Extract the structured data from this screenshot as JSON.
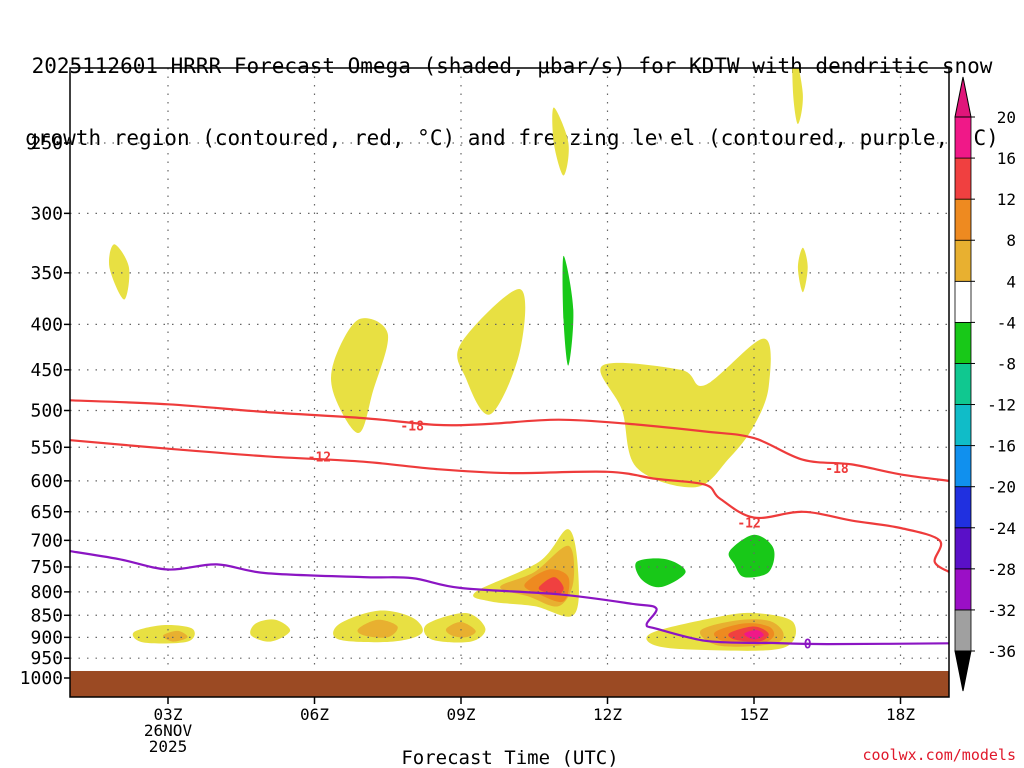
{
  "title_lines": [
    "2025112601 HRRR Forecast Omega (shaded, μbar/s) for KDTW with dendritic snow",
    "growth region (contoured, red, °C) and freezing level (contoured, purple, °C)"
  ],
  "brand": "coolwx.com/models",
  "chart_data": {
    "type": "contour-cross-section",
    "title": "2025112601 HRRR Forecast Omega (shaded, μbar/s) for KDTW with dendritic snow growth region (contoured, red, °C) and freezing level (contoured, purple, °C)",
    "xlabel": "Forecast Time (UTC)",
    "ylabel": "",
    "xlim": [
      1,
      19
    ],
    "ylim": [
      1000,
      200
    ],
    "x_ticks": [
      {
        "h": 3,
        "label": "03Z"
      },
      {
        "h": 6,
        "label": "06Z"
      },
      {
        "h": 9,
        "label": "09Z"
      },
      {
        "h": 12,
        "label": "12Z"
      },
      {
        "h": 15,
        "label": "15Z"
      },
      {
        "h": 18,
        "label": "18Z"
      }
    ],
    "x_date_lines": [
      "26NOV",
      "2025"
    ],
    "y_ticks": [
      250,
      300,
      350,
      400,
      450,
      500,
      550,
      600,
      650,
      700,
      750,
      800,
      850,
      900,
      950,
      1000
    ],
    "colorbar": {
      "levels": [
        -36,
        -32,
        -28,
        -24,
        -20,
        -16,
        -12,
        -8,
        -4,
        4,
        8,
        12,
        16,
        20
      ],
      "level_labels": [
        "-36",
        "-32",
        "-28",
        "-24",
        "-20",
        "-16",
        "-12",
        "-8",
        "-4",
        "4",
        "8",
        "12",
        "16",
        "20"
      ],
      "colors": [
        "#a0a0a0",
        "#9b0fc6",
        "#5a10c8",
        "#2030e0",
        "#1090ee",
        "#10bcc8",
        "#10c890",
        "#18c818",
        "#ffffff",
        "#e8e042",
        "#e8b030",
        "#ee8a20",
        "#f04040",
        "#f01888"
      ],
      "under_color": "#000000",
      "over_color": "#e0157a"
    },
    "terrain": {
      "top_hpa": 982,
      "color": "#9b4a23"
    },
    "isotherms": [
      {
        "label": "-18",
        "color": "#ee3b3b",
        "points": [
          [
            1,
            487
          ],
          [
            3,
            492
          ],
          [
            5,
            502
          ],
          [
            7,
            510
          ],
          [
            8.5,
            519
          ],
          [
            9.5,
            518
          ],
          [
            11,
            512
          ],
          [
            12.5,
            518
          ],
          [
            14,
            528
          ],
          [
            15,
            537
          ],
          [
            16,
            568
          ],
          [
            17,
            575
          ],
          [
            18,
            590
          ],
          [
            19,
            600
          ]
        ],
        "label_at": [
          8,
          520
        ]
      },
      {
        "label": "-18",
        "color": "#ee3b3b",
        "points": [],
        "label_at": [
          16.7,
          580
        ]
      },
      {
        "label": "-12",
        "color": "#ee3b3b",
        "points": [
          [
            1,
            540
          ],
          [
            3,
            552
          ],
          [
            5,
            563
          ],
          [
            7,
            571
          ],
          [
            8.5,
            582
          ],
          [
            10,
            588
          ],
          [
            12,
            586
          ],
          [
            13,
            597
          ],
          [
            14,
            606
          ],
          [
            14.3,
            628
          ],
          [
            15,
            660
          ],
          [
            16,
            650
          ],
          [
            17,
            665
          ],
          [
            18,
            678
          ],
          [
            18.8,
            700
          ],
          [
            18.7,
            740
          ],
          [
            19,
            760
          ]
        ],
        "label_at": [
          6.1,
          563
        ]
      },
      {
        "label": "-12",
        "color": "#ee3b3b",
        "points": [],
        "label_at": [
          14.9,
          668
        ]
      },
      {
        "label": "0",
        "color": "#8b15c3",
        "points": [
          [
            1,
            720
          ],
          [
            2,
            735
          ],
          [
            3,
            755
          ],
          [
            4,
            745
          ],
          [
            5,
            762
          ],
          [
            7,
            770
          ],
          [
            8,
            772
          ],
          [
            9,
            792
          ],
          [
            11,
            805
          ],
          [
            12.5,
            825
          ],
          [
            13,
            835
          ],
          [
            12.8,
            870
          ],
          [
            13,
            880
          ],
          [
            14,
            908
          ],
          [
            15,
            913
          ],
          [
            15.3,
            913
          ],
          [
            16.5,
            916
          ],
          [
            19,
            914
          ]
        ],
        "label_at": [
          16.1,
          914
        ]
      }
    ],
    "omega_regions": [
      {
        "value": 4,
        "points": [
          [
            1.9,
            325
          ],
          [
            2.2,
            345
          ],
          [
            2.1,
            375
          ],
          [
            1.8,
            345
          ]
        ]
      },
      {
        "value": 4,
        "points": [
          [
            2.3,
            888
          ],
          [
            2.9,
            872
          ],
          [
            3.5,
            880
          ],
          [
            3.4,
            910
          ],
          [
            2.5,
            912
          ]
        ]
      },
      {
        "value": 4,
        "points": [
          [
            4.8,
            868
          ],
          [
            5.2,
            860
          ],
          [
            5.5,
            885
          ],
          [
            5.1,
            910
          ],
          [
            4.7,
            895
          ]
        ]
      },
      {
        "value": 4,
        "points": [
          [
            6.5,
            870
          ],
          [
            7.3,
            840
          ],
          [
            8,
            855
          ],
          [
            8.2,
            890
          ],
          [
            7.6,
            910
          ],
          [
            6.5,
            905
          ]
        ]
      },
      {
        "value": 4,
        "points": [
          [
            6.4,
            440
          ],
          [
            6.9,
            395
          ],
          [
            7.5,
            410
          ],
          [
            7.2,
            475
          ],
          [
            6.9,
            530
          ],
          [
            6.4,
            480
          ]
        ]
      },
      {
        "value": 4,
        "points": [
          [
            8.3,
            870
          ],
          [
            9.1,
            845
          ],
          [
            9.5,
            880
          ],
          [
            9.2,
            910
          ],
          [
            8.4,
            905
          ]
        ]
      },
      {
        "value": 4,
        "points": [
          [
            9,
            420
          ],
          [
            10.2,
            365
          ],
          [
            10.2,
            430
          ],
          [
            9.6,
            505
          ],
          [
            9.1,
            460
          ]
        ]
      },
      {
        "value": 4,
        "points": [
          [
            9.3,
            800
          ],
          [
            10.6,
            740
          ],
          [
            11.2,
            680
          ],
          [
            11.4,
            760
          ],
          [
            11.3,
            850
          ],
          [
            10.5,
            830
          ],
          [
            9.6,
            820
          ]
        ]
      },
      {
        "value": 4,
        "points": [
          [
            10.9,
            228
          ],
          [
            11.2,
            250
          ],
          [
            11.1,
            272
          ],
          [
            10.9,
            250
          ]
        ]
      },
      {
        "value": 4,
        "points": [
          [
            11.9,
            445
          ],
          [
            13.5,
            450
          ],
          [
            14,
            468
          ],
          [
            15.2,
            415
          ],
          [
            15.3,
            470
          ],
          [
            15,
            520
          ],
          [
            14.5,
            565
          ],
          [
            13.8,
            610
          ],
          [
            12.6,
            580
          ],
          [
            12.3,
            500
          ]
        ]
      },
      {
        "value": 4,
        "points": [
          [
            12.9,
            890
          ],
          [
            14.2,
            855
          ],
          [
            15,
            845
          ],
          [
            15.8,
            865
          ],
          [
            15.6,
            925
          ],
          [
            14,
            930
          ],
          [
            13,
            920
          ]
        ]
      },
      {
        "value": 4,
        "points": [
          [
            15.8,
            195
          ],
          [
            16,
            220
          ],
          [
            15.9,
            238
          ],
          [
            15.8,
            220
          ]
        ]
      },
      {
        "value": 4,
        "points": [
          [
            16,
            328
          ],
          [
            16.1,
            345
          ],
          [
            16,
            368
          ],
          [
            15.9,
            345
          ]
        ]
      },
      {
        "value": 8,
        "points": [
          [
            2.9,
            896
          ],
          [
            3.2,
            885
          ],
          [
            3.4,
            900
          ],
          [
            3.1,
            910
          ]
        ]
      },
      {
        "value": 8,
        "points": [
          [
            9.8,
            790
          ],
          [
            10.5,
            760
          ],
          [
            11.2,
            710
          ],
          [
            11.3,
            780
          ],
          [
            11,
            830
          ],
          [
            10.4,
            810
          ]
        ]
      },
      {
        "value": 8,
        "points": [
          [
            6.9,
            880
          ],
          [
            7.3,
            860
          ],
          [
            7.7,
            875
          ],
          [
            7.5,
            900
          ],
          [
            7,
            895
          ]
        ]
      },
      {
        "value": 8,
        "points": [
          [
            8.7,
            880
          ],
          [
            9,
            865
          ],
          [
            9.3,
            885
          ],
          [
            9.1,
            900
          ],
          [
            8.8,
            895
          ]
        ]
      },
      {
        "value": 8,
        "points": [
          [
            13.9,
            885
          ],
          [
            14.6,
            862
          ],
          [
            15.3,
            862
          ],
          [
            15.6,
            890
          ],
          [
            15.4,
            915
          ],
          [
            14.3,
            920
          ]
        ]
      },
      {
        "value": 12,
        "points": [
          [
            10.3,
            785
          ],
          [
            10.8,
            755
          ],
          [
            11.2,
            770
          ],
          [
            11.1,
            820
          ],
          [
            10.6,
            805
          ]
        ]
      },
      {
        "value": 12,
        "points": [
          [
            14.2,
            888
          ],
          [
            14.8,
            868
          ],
          [
            15.3,
            875
          ],
          [
            15.4,
            898
          ],
          [
            15.1,
            915
          ],
          [
            14.4,
            910
          ]
        ]
      },
      {
        "value": 16,
        "points": [
          [
            10.6,
            790
          ],
          [
            10.9,
            770
          ],
          [
            11.1,
            790
          ],
          [
            11,
            805
          ],
          [
            10.7,
            800
          ]
        ]
      },
      {
        "value": 16,
        "points": [
          [
            14.5,
            890
          ],
          [
            15,
            875
          ],
          [
            15.3,
            892
          ],
          [
            15.1,
            910
          ],
          [
            14.6,
            905
          ]
        ]
      },
      {
        "value": 20,
        "points": [
          [
            14.8,
            892
          ],
          [
            15.05,
            883
          ],
          [
            15.2,
            895
          ],
          [
            15,
            905
          ]
        ]
      },
      {
        "value": -4,
        "points": [
          [
            11,
            298
          ],
          [
            11.5,
            312
          ],
          [
            11.4,
            350
          ],
          [
            11.3,
            420
          ],
          [
            11.4,
            535
          ],
          [
            11.2,
            580
          ],
          [
            10.9,
            545
          ],
          [
            10.8,
            440
          ],
          [
            10.9,
            355
          ]
        ]
      },
      {
        "value": -4,
        "points": [
          [
            12.5,
            370
          ],
          [
            13,
            268
          ],
          [
            13.2,
            240
          ],
          [
            13.5,
            282
          ],
          [
            13.3,
            320
          ],
          [
            13.1,
            352
          ]
        ]
      },
      {
        "value": -4,
        "points": [
          [
            18,
            283
          ],
          [
            19,
            283
          ],
          [
            18.5,
            310
          ],
          [
            18,
            332
          ]
        ]
      },
      {
        "value": -4,
        "points": [
          [
            16.9,
            368
          ],
          [
            17.1,
            392
          ],
          [
            17,
            420
          ],
          [
            16.8,
            395
          ]
        ]
      },
      {
        "value": -4,
        "points": [
          [
            7.7,
            585
          ],
          [
            8.1,
            570
          ],
          [
            8.2,
            625
          ],
          [
            8,
            660
          ],
          [
            7.8,
            650
          ]
        ]
      },
      {
        "value": -4,
        "points": [
          [
            5.9,
            800
          ],
          [
            6.1,
            796
          ],
          [
            6.2,
            808
          ],
          [
            6,
            815
          ]
        ]
      },
      {
        "value": -4,
        "points": [
          [
            3.9,
            920
          ],
          [
            4.1,
            912
          ],
          [
            4.2,
            930
          ],
          [
            4,
            938
          ]
        ]
      },
      {
        "value": -4,
        "points": [
          [
            11.6,
            600
          ],
          [
            12.2,
            595
          ],
          [
            12.5,
            655
          ],
          [
            13.3,
            700
          ],
          [
            14,
            720
          ],
          [
            14.3,
            700
          ],
          [
            15.5,
            680
          ],
          [
            16,
            700
          ],
          [
            15.8,
            770
          ],
          [
            15.3,
            790
          ],
          [
            14.2,
            800
          ],
          [
            14.1,
            830
          ],
          [
            13.3,
            820
          ],
          [
            12.1,
            850
          ],
          [
            12,
            760
          ]
        ]
      },
      {
        "value": -4,
        "points": [
          [
            17.5,
            720
          ],
          [
            18.2,
            655
          ],
          [
            19,
            565
          ],
          [
            19,
            700
          ],
          [
            18.5,
            770
          ],
          [
            18.1,
            835
          ],
          [
            17.5,
            808
          ]
        ]
      },
      {
        "value": -8,
        "points": [
          [
            11.1,
            335
          ],
          [
            11.3,
            385
          ],
          [
            11.2,
            445
          ],
          [
            11.1,
            395
          ]
        ]
      },
      {
        "value": -8,
        "points": [
          [
            12.6,
            740
          ],
          [
            13.2,
            735
          ],
          [
            13.6,
            760
          ],
          [
            13.1,
            790
          ],
          [
            12.7,
            775
          ]
        ]
      },
      {
        "value": -8,
        "points": [
          [
            14.5,
            720
          ],
          [
            15,
            690
          ],
          [
            15.4,
            715
          ],
          [
            15.3,
            760
          ],
          [
            14.8,
            770
          ],
          [
            14.6,
            745
          ]
        ]
      }
    ]
  }
}
